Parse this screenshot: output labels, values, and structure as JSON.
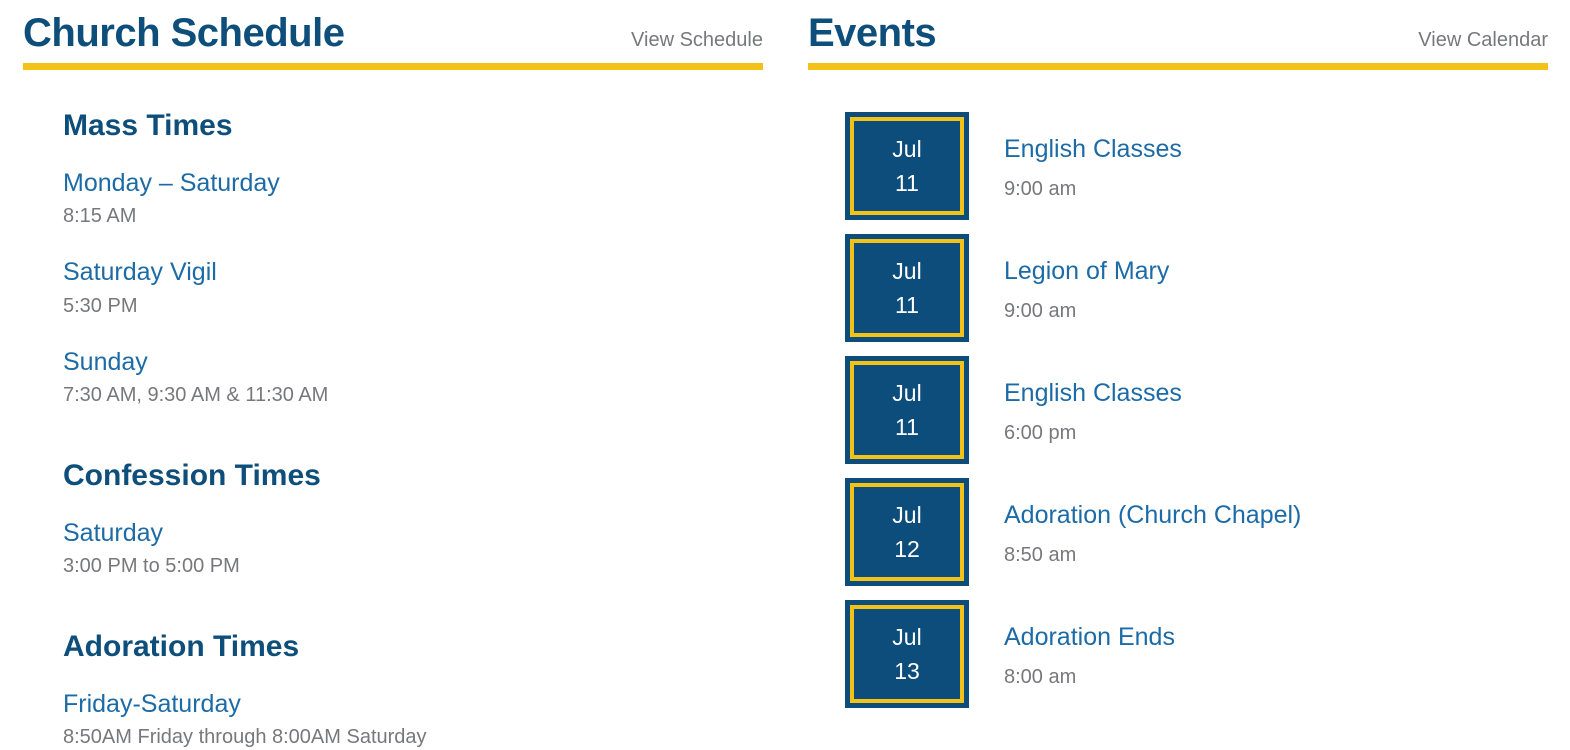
{
  "colors": {
    "heading_blue": "#0d4e7b",
    "accent_blue": "#1c6ba6",
    "text_gray": "#77787b",
    "gold": "#f2c218",
    "badge_blue": "#0c4d7c",
    "badge_text": "#ffffff"
  },
  "schedule": {
    "title": "Church Schedule",
    "link_label": "View Schedule",
    "sections": [
      {
        "heading": "Mass Times",
        "entries": [
          {
            "label": "Monday – Saturday",
            "time": "8:15 AM"
          },
          {
            "label": "Saturday Vigil",
            "time": "5:30 PM"
          },
          {
            "label": "Sunday",
            "time": "7:30 AM, 9:30 AM & 11:30 AM"
          }
        ]
      },
      {
        "heading": "Confession Times",
        "entries": [
          {
            "label": "Saturday",
            "time": "3:00 PM to 5:00 PM"
          }
        ]
      },
      {
        "heading": "Adoration Times",
        "entries": [
          {
            "label": "Friday-Saturday",
            "time": "8:50AM Friday through 8:00AM Saturday"
          }
        ]
      }
    ]
  },
  "events": {
    "title": "Events",
    "link_label": "View Calendar",
    "items": [
      {
        "month": "Jul",
        "day": "11",
        "name": "English Classes",
        "time": "9:00 am"
      },
      {
        "month": "Jul",
        "day": "11",
        "name": "Legion of Mary",
        "time": "9:00 am"
      },
      {
        "month": "Jul",
        "day": "11",
        "name": "English Classes",
        "time": "6:00 pm"
      },
      {
        "month": "Jul",
        "day": "12",
        "name": "Adoration (Church Chapel)",
        "time": "8:50 am"
      },
      {
        "month": "Jul",
        "day": "13",
        "name": "Adoration Ends",
        "time": "8:00 am"
      }
    ]
  }
}
